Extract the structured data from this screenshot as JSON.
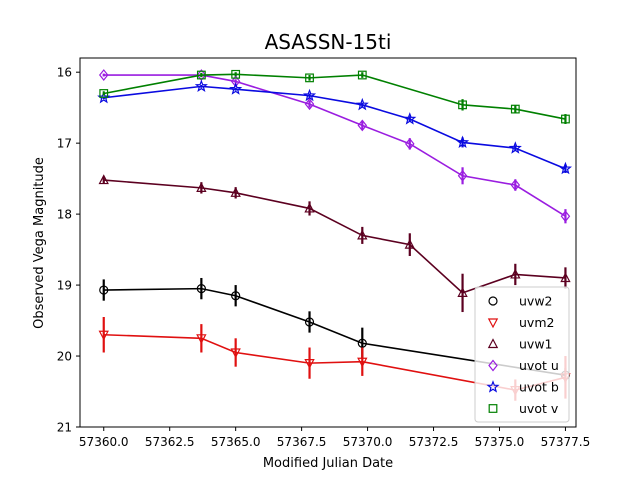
{
  "chart_data": {
    "type": "line",
    "title": "ASASSN-15ti",
    "xlabel": "Modified Julian Date",
    "ylabel": "Observed Vega Magnitude",
    "xlim": [
      57359.1,
      57377.9
    ],
    "ylim": [
      21,
      15.8
    ],
    "y_inverted": true,
    "grid": false,
    "legend_position": "lower-right",
    "xticks": [
      57360.0,
      57362.5,
      57365.0,
      57367.5,
      57370.0,
      57372.5,
      57375.0,
      57377.5
    ],
    "xtick_labels": [
      "57360.0",
      "57362.5",
      "57365.0",
      "57367.5",
      "57370.0",
      "57372.5",
      "57375.0",
      "57377.5"
    ],
    "yticks": [
      16,
      17,
      18,
      19,
      20,
      21
    ],
    "ytick_labels": [
      "16",
      "17",
      "18",
      "19",
      "20",
      "21"
    ],
    "series": [
      {
        "name": "uvw2",
        "color": "#000000",
        "marker": "circle",
        "x": [
          57360.0,
          57363.7,
          57365.0,
          57367.8,
          57369.8,
          57377.5
        ],
        "y": [
          19.07,
          19.05,
          19.15,
          19.52,
          19.82,
          20.27
        ],
        "yerr": [
          0.15,
          0.15,
          0.15,
          0.15,
          0.22,
          0.1
        ]
      },
      {
        "name": "uvm2",
        "color": "#e01010",
        "marker": "triangle-down",
        "x": [
          57360.0,
          57363.7,
          57365.0,
          57367.8,
          57369.8,
          57375.6,
          57377.5
        ],
        "y": [
          19.7,
          19.75,
          19.95,
          20.1,
          20.08,
          20.48,
          20.3
        ],
        "yerr": [
          0.25,
          0.2,
          0.2,
          0.22,
          0.2,
          0.15,
          0.3
        ]
      },
      {
        "name": "uvw1",
        "color": "#5c0020",
        "marker": "triangle-up",
        "x": [
          57360.0,
          57363.7,
          57365.0,
          57367.8,
          57369.8,
          57371.6,
          57373.6,
          57375.6,
          57377.5
        ],
        "y": [
          17.52,
          17.63,
          17.7,
          17.92,
          18.3,
          18.43,
          19.11,
          18.85,
          18.9
        ],
        "yerr": [
          0.05,
          0.08,
          0.08,
          0.1,
          0.12,
          0.16,
          0.27,
          0.15,
          0.15
        ]
      },
      {
        "name": "uvot u",
        "color": "#9a1de0",
        "marker": "diamond",
        "x": [
          57360.0,
          57363.7,
          57365.0,
          57367.8,
          57369.8,
          57371.6,
          57373.6,
          57375.6,
          57377.5
        ],
        "y": [
          16.04,
          16.04,
          16.13,
          16.45,
          16.75,
          17.01,
          17.46,
          17.59,
          18.03
        ],
        "yerr": [
          0.02,
          0.02,
          0.03,
          0.05,
          0.06,
          0.08,
          0.12,
          0.08,
          0.1
        ]
      },
      {
        "name": "uvot b",
        "color": "#0a0ae0",
        "marker": "star",
        "x": [
          57360.0,
          57363.7,
          57365.0,
          57367.8,
          57369.8,
          57371.6,
          57373.6,
          57375.6,
          57377.5
        ],
        "y": [
          16.36,
          16.2,
          16.24,
          16.33,
          16.46,
          16.66,
          16.99,
          17.07,
          17.36
        ],
        "yerr": [
          0.02,
          0.02,
          0.02,
          0.03,
          0.03,
          0.04,
          0.07,
          0.04,
          0.06
        ]
      },
      {
        "name": "uvot v",
        "color": "#008000",
        "marker": "square",
        "x": [
          57360.0,
          57363.7,
          57365.0,
          57367.8,
          57369.8,
          57373.6,
          57375.6,
          57377.5
        ],
        "y": [
          16.3,
          16.04,
          16.03,
          16.08,
          16.04,
          16.46,
          16.52,
          16.66
        ],
        "yerr": [
          0.03,
          0.03,
          0.03,
          0.04,
          0.04,
          0.08,
          0.05,
          0.07
        ]
      }
    ]
  }
}
